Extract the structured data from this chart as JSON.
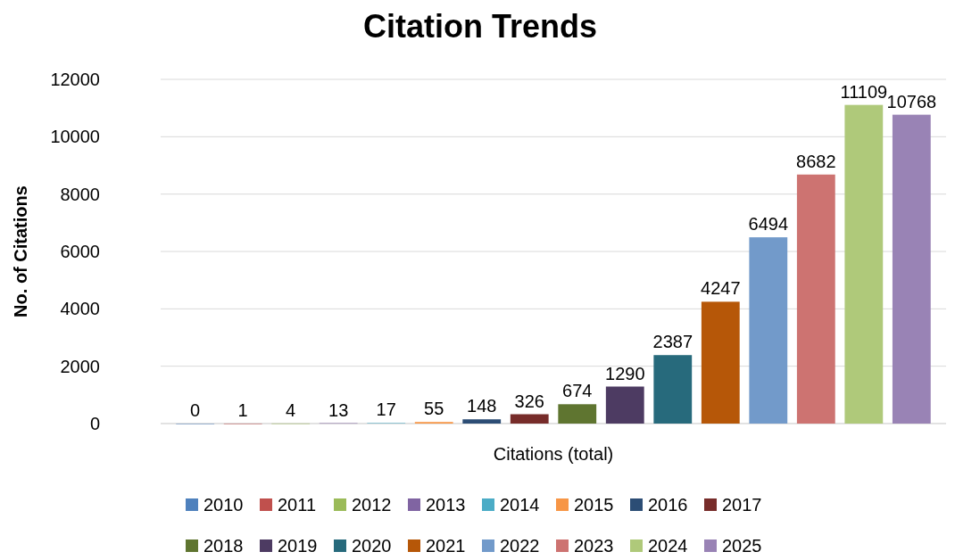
{
  "chart_data": {
    "type": "bar",
    "title": "Citation Trends",
    "ylabel": "No. of Citations",
    "categories": [
      "Citations (total)"
    ],
    "ylim": [
      0,
      12000
    ],
    "yticks": [
      0,
      2000,
      4000,
      6000,
      8000,
      10000,
      12000
    ],
    "grid": "y",
    "legend": "bottom",
    "data_labels": true,
    "series": [
      {
        "name": "2010",
        "color": "#4f81bd",
        "values": [
          0
        ]
      },
      {
        "name": "2011",
        "color": "#c0504d",
        "values": [
          1
        ]
      },
      {
        "name": "2012",
        "color": "#9bbb59",
        "values": [
          4
        ]
      },
      {
        "name": "2013",
        "color": "#8064a2",
        "values": [
          13
        ]
      },
      {
        "name": "2014",
        "color": "#4bacc6",
        "values": [
          17
        ]
      },
      {
        "name": "2015",
        "color": "#f79646",
        "values": [
          55
        ]
      },
      {
        "name": "2016",
        "color": "#2c4d75",
        "values": [
          148
        ]
      },
      {
        "name": "2017",
        "color": "#772c2a",
        "values": [
          326
        ]
      },
      {
        "name": "2018",
        "color": "#5f7530",
        "values": [
          674
        ]
      },
      {
        "name": "2019",
        "color": "#4d3b62",
        "values": [
          1290
        ]
      },
      {
        "name": "2020",
        "color": "#276a7c",
        "values": [
          2387
        ]
      },
      {
        "name": "2021",
        "color": "#b65708",
        "values": [
          4247
        ]
      },
      {
        "name": "2022",
        "color": "#729aca",
        "values": [
          6494
        ]
      },
      {
        "name": "2023",
        "color": "#cd7371",
        "values": [
          8682
        ]
      },
      {
        "name": "2024",
        "color": "#afc97a",
        "values": [
          11109
        ]
      },
      {
        "name": "2025",
        "color": "#9983b5",
        "values": [
          10768
        ]
      }
    ]
  }
}
